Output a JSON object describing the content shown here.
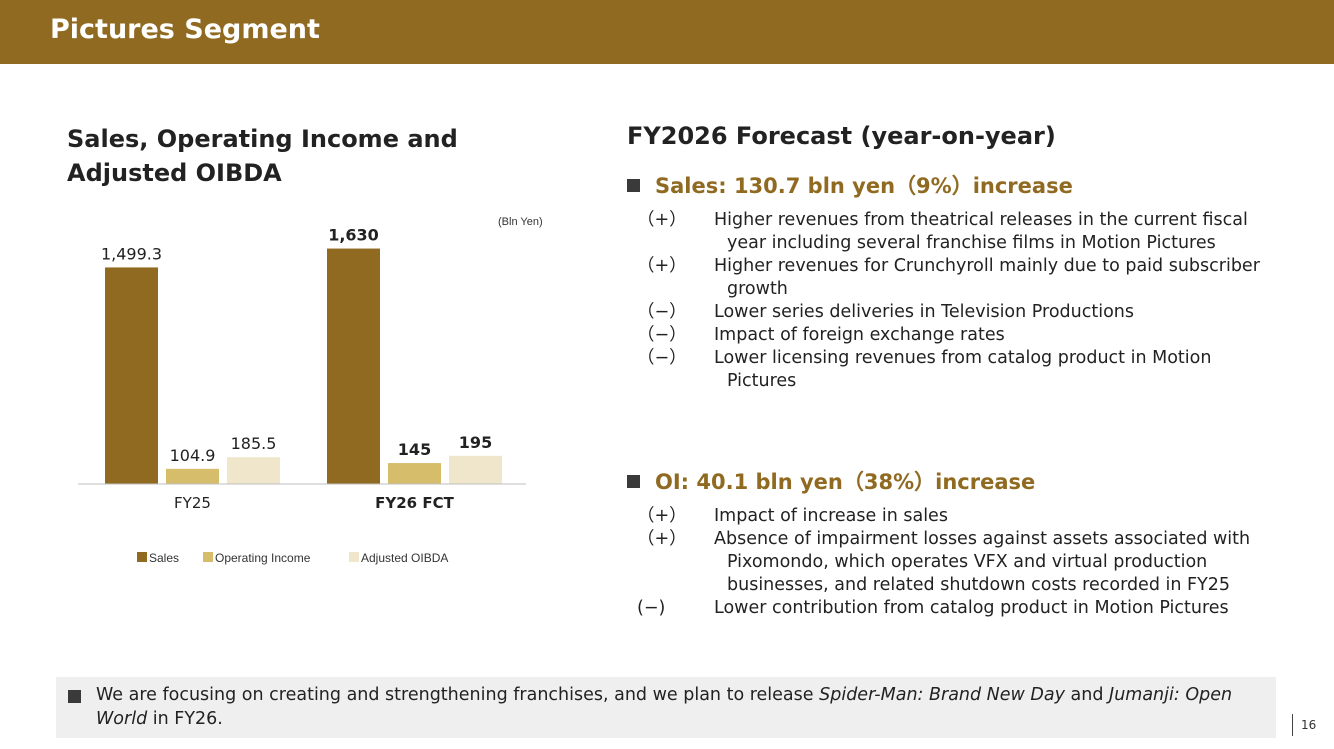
{
  "header": {
    "title": "Pictures Segment"
  },
  "chart_data": {
    "type": "bar",
    "title": "Sales, Operating Income and Adjusted OIBDA",
    "unit": "(Bln Yen)",
    "categories": [
      "FY25",
      "FY26 FCT"
    ],
    "series": [
      {
        "name": "Sales",
        "values": [
          1499.3,
          1630
        ],
        "labels": [
          "1,499.3",
          "1,630"
        ],
        "color": "#8f6a20"
      },
      {
        "name": "Operating Income",
        "values": [
          104.9,
          145
        ],
        "labels": [
          "104.9",
          "145"
        ],
        "color": "#d6bd6c"
      },
      {
        "name": "Adjusted OIBDA",
        "values": [
          185.5,
          195
        ],
        "labels": [
          "185.5",
          "195"
        ],
        "color": "#efe6cc"
      }
    ],
    "bold_categories": [
      false,
      true
    ],
    "ylim": [
      0,
      1800
    ],
    "legend": "bottom",
    "grid": false
  },
  "forecast": {
    "title": "FY2026 Forecast (year-on-year)",
    "sales": {
      "heading": "Sales: 130.7 bln yen（9%）increase",
      "items": [
        {
          "sign": "（+）",
          "text": "Higher revenues from theatrical releases in the current fiscal year including several franchise films in Motion Pictures"
        },
        {
          "sign": "（+）",
          "text": "Higher revenues for Crunchyroll mainly due to paid subscriber growth"
        },
        {
          "sign": "（−）",
          "text": "Lower series deliveries in Television Productions"
        },
        {
          "sign": "（−）",
          "text": "Impact of foreign exchange rates"
        },
        {
          "sign": "（−）",
          "text": "Lower licensing revenues from catalog product in Motion Pictures"
        }
      ]
    },
    "oi": {
      "heading": "OI: 40.1 bln yen（38%）increase",
      "items": [
        {
          "sign": "（+）",
          "text": "Impact of increase in sales"
        },
        {
          "sign": "（+）",
          "text": "Absence of impairment losses against assets associated with Pixomondo, which operates VFX and virtual production businesses, and related shutdown costs recorded in FY25"
        },
        {
          "sign": "(−)",
          "text": "Lower contribution from catalog product in Motion Pictures"
        }
      ]
    }
  },
  "bottom": {
    "t1": "We are focusing on creating and strengthening franchises, and we plan to release ",
    "t2": "Spider-Man: Brand New Day",
    "t3": " and ",
    "t4": "Jumanji: Open World",
    "t5": " in FY26."
  },
  "page_number": "16"
}
